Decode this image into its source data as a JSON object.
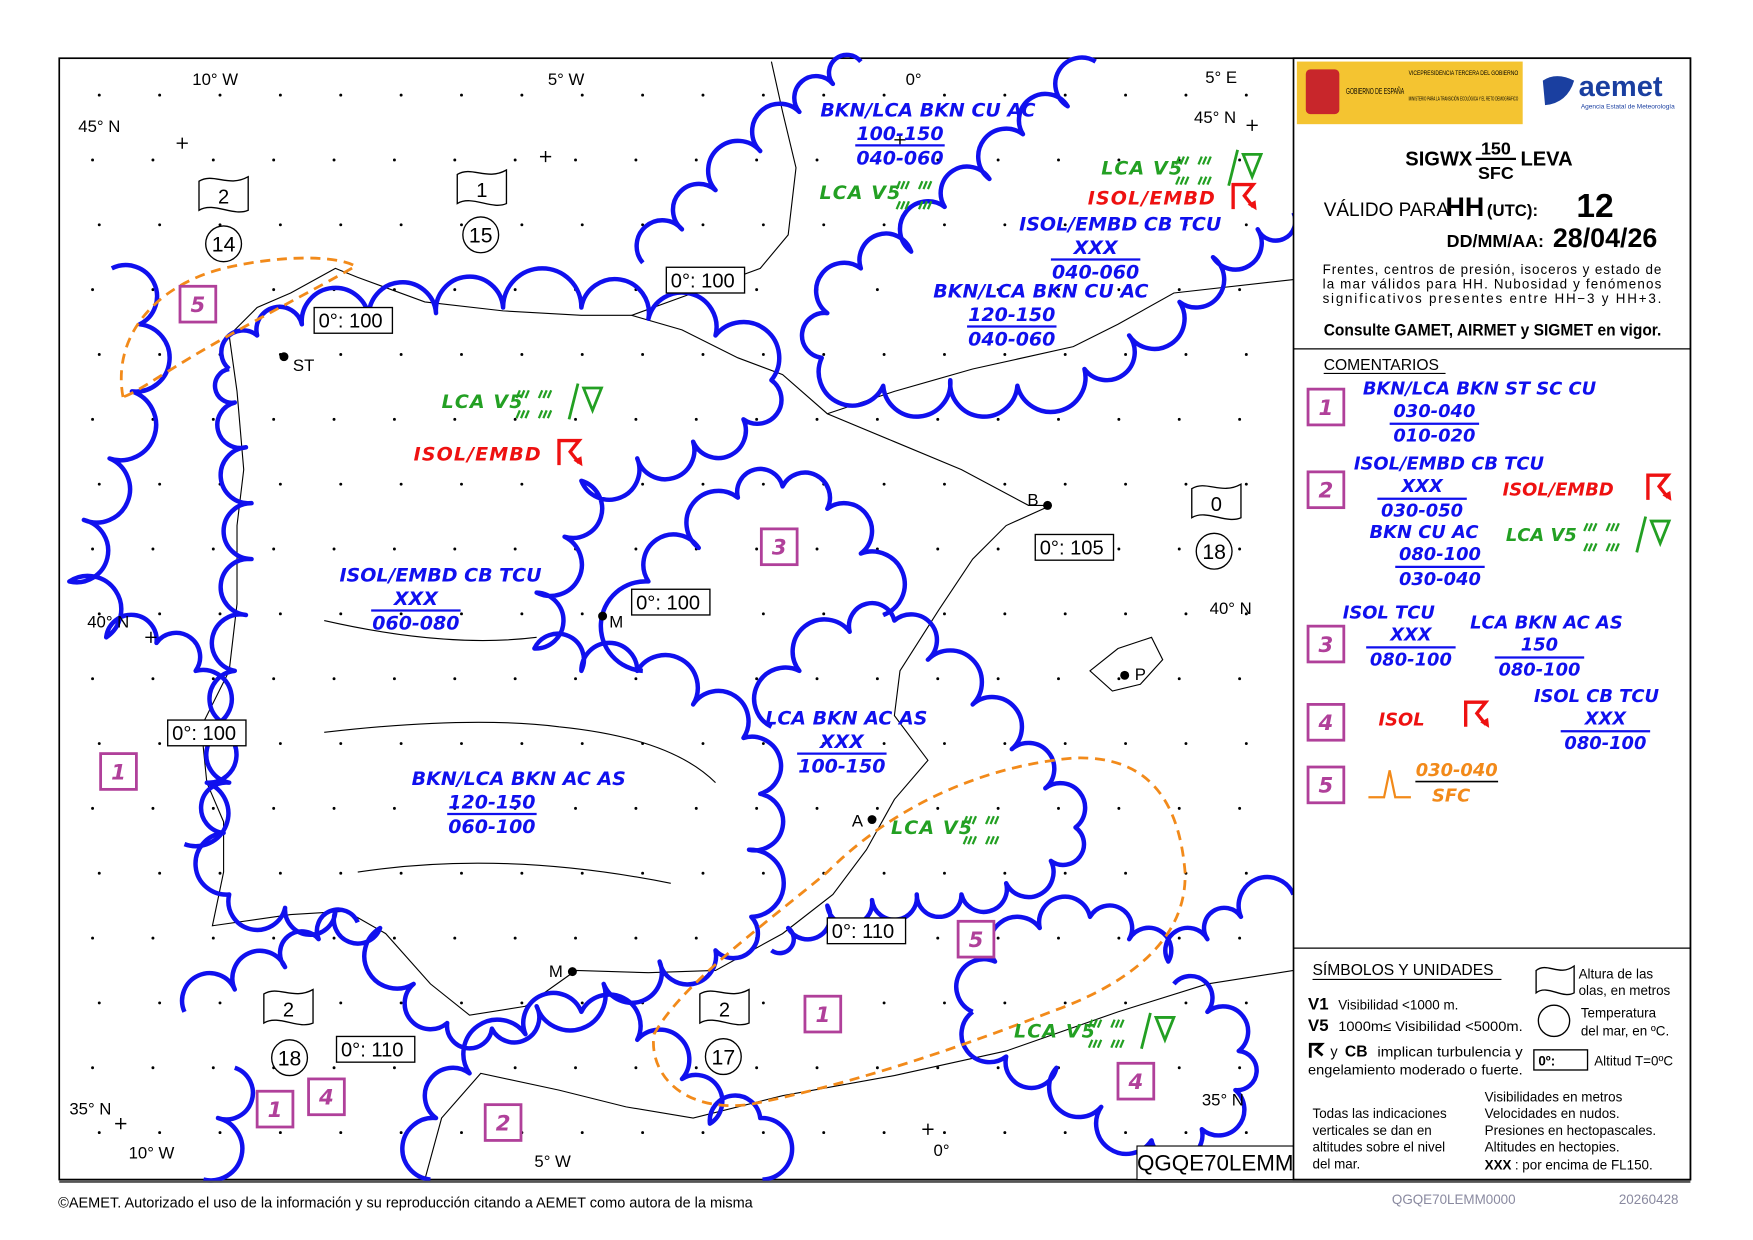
{
  "colors": {
    "cloud": "#1010ee",
    "visibility": "#23a023",
    "turbulence": "#ee1111",
    "front": "#f28a1a",
    "area_box": "#b0409a",
    "coast": "#000000",
    "header": "#f4c431"
  },
  "header": {
    "logo_gov": "GOBIERNO DE ESPAÑA",
    "logo_vice": "VICEPRESIDENCIA TERCERA DEL GOBIERNO",
    "logo_min": "MINISTERIO PARA LA TRANSICIÓN ECOLÓGICA Y EL RETO DEMOGRÁFICO",
    "logo_aemet": "aemet",
    "logo_aemet_sub": "Agencia Estatal de Meteorología",
    "title_main": "SIGWX",
    "title_top": "150",
    "title_bottom": "SFC",
    "title_suffix": "LEVA",
    "valid_label": "VÁLIDO PARA",
    "valid_hh": "HH",
    "valid_utc": "(UTC):",
    "valid_hour": "12",
    "date_label": "DD/MM/AA:",
    "date": "28/04/26",
    "note": [
      "Frentes, centros de presión, isoceros y estado de",
      "la mar válidos para HH. Nubosidad y fenómenos",
      "significativos presentes entre HH−3 y HH+3."
    ],
    "consult": "Consulte GAMET, AIRMET y SIGMET en vigor."
  },
  "comments": {
    "title": "COMENTARIOS",
    "items": [
      {
        "id": "1",
        "cloud": [
          {
            "type": "BKN/LCA BKN ST SC CU",
            "top": "030-040",
            "bottom": "010-020"
          }
        ]
      },
      {
        "id": "2",
        "cloud": [
          {
            "type": "ISOL/EMBD CB TCU",
            "top": "XXX",
            "bottom": "030-050"
          },
          {
            "type": "BKN CU AC",
            "top": "080-100",
            "bottom": "030-040"
          }
        ],
        "turbulence": "ISOL/EMBD",
        "visibility": "LCA V5"
      },
      {
        "id": "3",
        "cloud": [
          {
            "type": "ISOL TCU",
            "top": "XXX",
            "bottom": "080-100"
          },
          {
            "type": "LCA BKN AC AS",
            "top": "150",
            "bottom": "080-100"
          }
        ]
      },
      {
        "id": "4",
        "turbulence": "ISOL",
        "cloud": [
          {
            "type": "ISOL CB TCU",
            "top": "XXX",
            "bottom": "080-100"
          }
        ]
      },
      {
        "id": "5",
        "front": {
          "top": "030-040",
          "bottom": "SFC"
        }
      }
    ]
  },
  "symbols": {
    "title": "SÍMBOLOS Y UNIDADES",
    "v1": "V1",
    "v1_text": "Visibilidad <1000 m.",
    "v5": "V5",
    "v5_text": "1000m≤ Visibilidad <5000m.",
    "turb_y": "y",
    "turb_cb": "CB",
    "turb_text1": "implican turbulencia y",
    "turb_text2": "engelamiento moderado o fuerte.",
    "wave_text1": "Altura de las",
    "wave_text2": "olas, en metros",
    "sst_text1": "Temperatura",
    "sst_text2": "del mar, en ºC.",
    "freeze_box": "0º:",
    "freeze_text": "Altitud T=0ºC",
    "vertical": [
      "Todas las indicaciones",
      "verticales se dan en",
      "altitudes sobre el nivel",
      "del mar."
    ],
    "units": [
      "Visibilidades en metros",
      "Velocidades en nudos.",
      "Presiones en hectopascales.",
      "Altitudes en hectopies."
    ],
    "xxx": "XXX",
    "xxx_text": ": por encima de FL150."
  },
  "map": {
    "graticule": [
      "10° W",
      "5° W",
      "0°",
      "5° E",
      "45° N",
      "45° N",
      "40° N",
      "40° N",
      "35° N",
      "35° N",
      "10° W",
      "5° W",
      "0°"
    ],
    "sea_state": [
      {
        "wave": "2",
        "sst": "14"
      },
      {
        "wave": "1",
        "sst": "15"
      },
      {
        "wave": "0",
        "sst": "18"
      },
      {
        "wave": "2",
        "sst": "18"
      },
      {
        "wave": "2",
        "sst": "17"
      }
    ],
    "freezing_levels": [
      "0°: 100",
      "0°: 100",
      "0°: 105",
      "0°: 100",
      "0°: 100",
      "0°: 110",
      "0°: 110"
    ],
    "stations": [
      "ST",
      "B",
      "M",
      "A",
      "M",
      "P"
    ],
    "areas": [
      "5",
      "3",
      "1",
      "5",
      "1",
      "4",
      "1",
      "4",
      "2"
    ],
    "cloud_labels": [
      {
        "type": "BKN/LCA BKN CU AC",
        "top": "100-150",
        "bottom": "040-060"
      },
      {
        "type": "ISOL/EMBD CB TCU",
        "top": "XXX",
        "bottom": "040-060"
      },
      {
        "type": "BKN/LCA BKN CU AC",
        "top": "120-150",
        "bottom": "040-060"
      },
      {
        "type": "ISOL/EMBD CB TCU",
        "top": "XXX",
        "bottom": "060-080"
      },
      {
        "type": "LCA BKN AC AS",
        "top": "XXX",
        "bottom": "100-150"
      },
      {
        "type": "BKN/LCA BKN AC AS",
        "top": "120-150",
        "bottom": "060-100"
      }
    ],
    "weather": [
      {
        "text": "LCA V5",
        "kind": "visibility"
      },
      {
        "text": "LCA V5",
        "kind": "visibility"
      },
      {
        "text": "ISOL/EMBD",
        "kind": "turbulence"
      },
      {
        "text": "LCA V5",
        "kind": "visibility"
      },
      {
        "text": "ISOL/EMBD",
        "kind": "turbulence"
      },
      {
        "text": "LCA V5",
        "kind": "visibility"
      },
      {
        "text": "LCA V5",
        "kind": "visibility"
      }
    ],
    "chart_id": "QGQE70LEMM"
  },
  "footer": {
    "copyright": "©AEMET. Autorizado el uso de la información y su reproducción citando a AEMET como autora de la misma",
    "product": "QGQE70LEMM0000",
    "date": "20260428"
  }
}
